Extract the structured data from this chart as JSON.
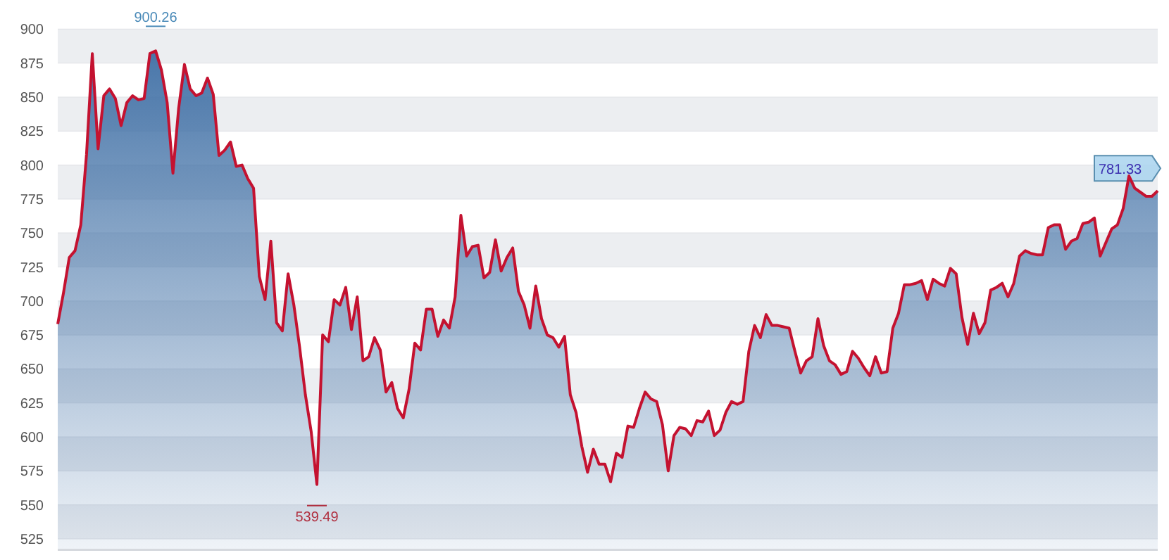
{
  "chart_data": {
    "type": "area",
    "ylim": [
      517,
      900
    ],
    "yticks": [
      525,
      550,
      575,
      600,
      625,
      650,
      675,
      700,
      725,
      750,
      775,
      800,
      825,
      850,
      875,
      900
    ],
    "grid": "y",
    "tick_labels": "y",
    "categories": [
      null,
      null,
      null,
      null,
      null,
      null,
      null,
      null,
      null,
      null,
      null,
      null,
      null,
      null,
      null,
      null,
      null,
      null,
      null,
      null,
      null,
      null,
      null,
      null,
      null,
      null,
      null,
      null,
      null,
      null,
      null,
      null,
      null,
      null,
      null,
      null,
      null,
      null,
      null,
      null,
      null,
      null,
      null,
      null,
      null,
      null,
      null,
      null,
      null,
      null,
      null,
      null,
      null,
      null,
      null,
      null,
      null,
      null,
      null,
      null,
      null,
      null,
      null,
      null,
      null,
      null,
      null,
      null,
      null,
      null,
      null,
      null,
      null,
      null,
      null,
      null,
      null,
      null,
      null,
      null,
      null,
      null,
      null,
      null,
      null,
      null,
      null,
      null,
      null,
      null,
      null,
      null,
      null,
      null,
      null,
      null,
      null,
      null,
      null,
      null,
      null,
      null,
      null,
      null,
      null,
      null,
      null,
      null,
      null,
      null,
      null,
      null,
      null,
      null,
      null,
      null,
      null,
      null,
      null,
      null,
      null,
      null,
      null,
      null,
      null,
      null,
      null,
      null,
      null,
      null,
      null,
      null,
      null,
      null,
      null,
      null,
      null,
      null,
      null,
      null,
      null,
      null,
      null,
      null,
      null,
      null,
      null,
      null,
      null,
      null,
      null,
      null,
      null,
      null,
      null,
      null,
      null,
      null,
      null,
      null,
      null,
      null,
      null,
      null,
      null,
      null,
      null,
      null,
      null,
      null,
      null,
      null,
      null,
      null,
      null,
      null,
      null,
      null,
      null,
      null,
      null,
      null,
      null,
      null,
      null,
      null,
      null,
      null,
      null,
      null,
      null,
      null
    ],
    "series": [
      {
        "color": "#c41230",
        "values": [
          683,
          706,
          732,
          737,
          756,
          808,
          882,
          812,
          851,
          856,
          849,
          829,
          846,
          851,
          848,
          849,
          882,
          884,
          870,
          846,
          794,
          842,
          874,
          856,
          851,
          853,
          864,
          852,
          807,
          811,
          817,
          799,
          800,
          790,
          783,
          718,
          701,
          744,
          684,
          678,
          720,
          697,
          666,
          631,
          604,
          565,
          675,
          670,
          701,
          697,
          710,
          679,
          703,
          656,
          659,
          673,
          664,
          633,
          640,
          621,
          614,
          635,
          669,
          664,
          694,
          694,
          674,
          686,
          680,
          703,
          763,
          733,
          740,
          741,
          717,
          721,
          745,
          722,
          732,
          739,
          707,
          697,
          680,
          711,
          687,
          675,
          673,
          666,
          674,
          631,
          618,
          593,
          574,
          591,
          580,
          580,
          567,
          588,
          585,
          608,
          607,
          621,
          633,
          628,
          626,
          609,
          575,
          601,
          607,
          606,
          601,
          612,
          611,
          619,
          601,
          605,
          618,
          626,
          624,
          626,
          663,
          682,
          673,
          690,
          682,
          682,
          681,
          680,
          663,
          647,
          656,
          659,
          687,
          667,
          656,
          653,
          646,
          648,
          663,
          658,
          651,
          645,
          659,
          647,
          648,
          680,
          691,
          712,
          712,
          713,
          715,
          701,
          716,
          713,
          711,
          724,
          720,
          688,
          668,
          691,
          676,
          684,
          708,
          710,
          713,
          703,
          713,
          733,
          737,
          735,
          734,
          734,
          754,
          756,
          756,
          738,
          744,
          746,
          757,
          758,
          761,
          733,
          743,
          753,
          756,
          768,
          792,
          783,
          780,
          777,
          777,
          781
        ]
      }
    ],
    "annotations": [
      "900.26",
      "539.49",
      "781.33"
    ]
  }
}
